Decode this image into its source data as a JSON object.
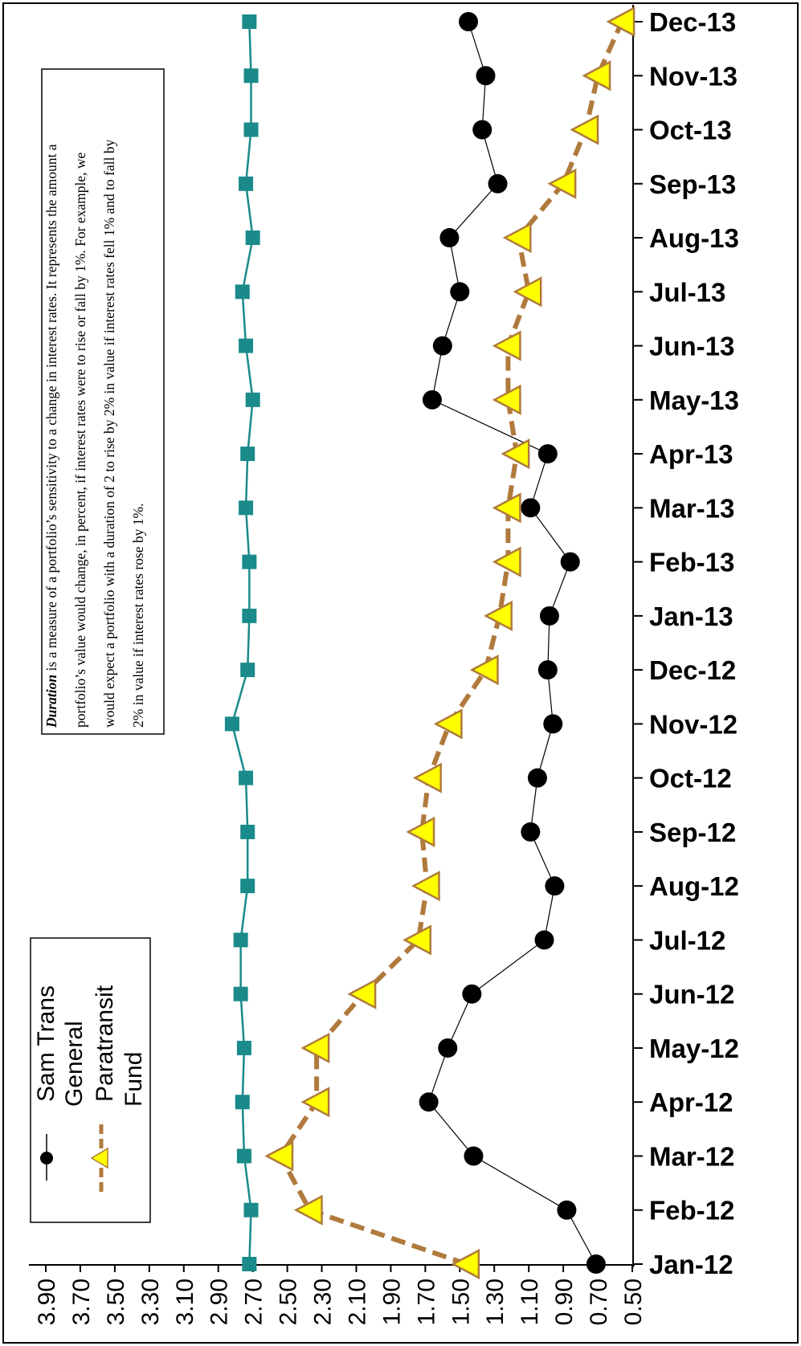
{
  "chart_data": {
    "type": "line",
    "orientation": "rotated-90-clockwise",
    "x": [
      "Jan-12",
      "Feb-12",
      "Mar-12",
      "Apr-12",
      "May-12",
      "Jun-12",
      "Jul-12",
      "Aug-12",
      "Sep-12",
      "Oct-12",
      "Nov-12",
      "Dec-12",
      "Jan-13",
      "Feb-13",
      "Mar-13",
      "Apr-13",
      "May-13",
      "Jun-13",
      "Jul-13",
      "Aug-13",
      "Sep-13",
      "Oct-13",
      "Nov-13",
      "Dec-13"
    ],
    "y_ticks": [
      "3.90",
      "3.70",
      "3.50",
      "3.30",
      "3.10",
      "2.90",
      "2.70",
      "2.50",
      "2.30",
      "2.10",
      "1.90",
      "1.70",
      "1.50",
      "1.30",
      "1.10",
      "0.90",
      "0.70",
      "0.50"
    ],
    "ylim": [
      0.5,
      3.9
    ],
    "series": [
      {
        "name": "Sam Trans General",
        "color": "#000000",
        "marker": "circle",
        "values": [
          0.71,
          0.88,
          1.42,
          1.68,
          1.57,
          1.43,
          1.01,
          0.95,
          1.09,
          1.05,
          0.96,
          0.99,
          0.98,
          0.86,
          1.09,
          0.99,
          1.66,
          1.6,
          1.5,
          1.56,
          1.28,
          1.37,
          1.35,
          1.45
        ]
      },
      {
        "name": "Paratransit Fund",
        "color": "#b07a3c",
        "marker_color": "#ffff00",
        "marker": "triangle",
        "values": [
          1.46,
          2.37,
          2.54,
          2.33,
          2.33,
          2.06,
          1.74,
          1.69,
          1.72,
          1.68,
          1.56,
          1.35,
          1.27,
          1.22,
          1.22,
          1.17,
          1.22,
          1.22,
          1.1,
          1.16,
          0.9,
          0.77,
          0.7,
          0.56
        ]
      },
      {
        "color": "#1a8a8a",
        "marker": "square",
        "values": [
          2.72,
          2.71,
          2.75,
          2.76,
          2.75,
          2.77,
          2.77,
          2.73,
          2.73,
          2.74,
          2.82,
          2.73,
          2.72,
          2.72,
          2.74,
          2.73,
          2.7,
          2.74,
          2.76,
          2.7,
          2.74,
          2.71,
          2.71,
          2.72
        ]
      }
    ],
    "legend": {
      "items": [
        {
          "lines": [
            "Sam Trans",
            "General"
          ]
        },
        {
          "lines": [
            "Paratransit",
            "Fund"
          ]
        }
      ]
    },
    "annotation": {
      "lines": [
        {
          "bold": "Duration",
          "text": " is a measure of a portfolio’s sensitivity to a change in interest rates. It represents the amount a"
        },
        {
          "bold": "",
          "text": "portfolio’s value would change, in percent, if interest rates were to rise or fall by 1%. For example, we"
        },
        {
          "bold": "",
          "text": "would expect a portfolio with a duration of 2 to rise by 2% in value if interest rates fell 1% and to fall by"
        },
        {
          "bold": "",
          "text": "2% in value if interest rates rose by 1%."
        }
      ]
    }
  }
}
